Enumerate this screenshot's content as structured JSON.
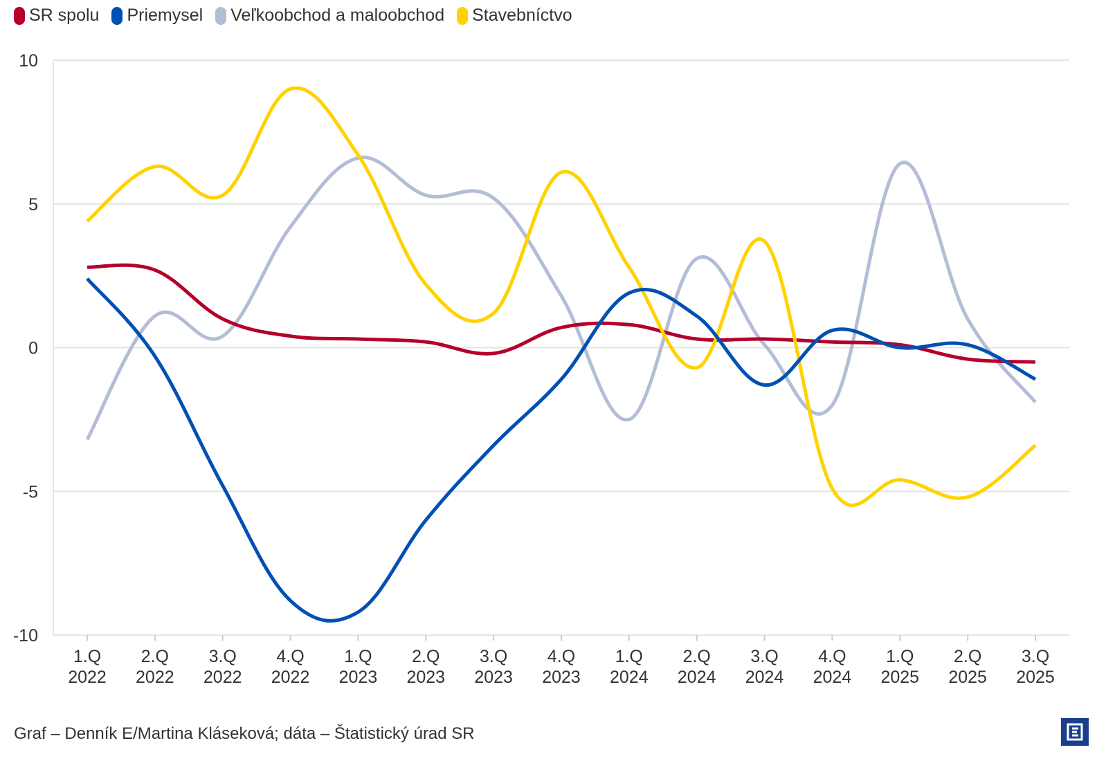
{
  "legend": [
    {
      "name": "SR spolu",
      "color": "#b5002b"
    },
    {
      "name": "Priemysel",
      "color": "#0050b4"
    },
    {
      "name": "Veľkoobchod a maloobchod",
      "color": "#b3bdd6"
    },
    {
      "name": "Stavebníctvo",
      "color": "#ffd200"
    }
  ],
  "chart_data": {
    "type": "line",
    "categories": [
      [
        "1.Q",
        "2022"
      ],
      [
        "2.Q",
        "2022"
      ],
      [
        "3.Q",
        "2022"
      ],
      [
        "4.Q",
        "2022"
      ],
      [
        "1.Q",
        "2023"
      ],
      [
        "2.Q",
        "2023"
      ],
      [
        "3.Q",
        "2023"
      ],
      [
        "4.Q",
        "2023"
      ],
      [
        "1.Q",
        "2024"
      ],
      [
        "2.Q",
        "2024"
      ],
      [
        "3.Q",
        "2024"
      ],
      [
        "4.Q",
        "2024"
      ],
      [
        "1.Q",
        "2025"
      ],
      [
        "2.Q",
        "2025"
      ],
      [
        "3.Q",
        "2025"
      ]
    ],
    "ylim": [
      -10,
      10
    ],
    "yticks": [
      10,
      5,
      0,
      -5,
      -10
    ],
    "ytick_labels": [
      "10",
      "5",
      "0",
      "-5",
      "-10"
    ],
    "series": [
      {
        "name": "SR spolu",
        "color": "#b5002b",
        "values": [
          2.8,
          2.7,
          1.0,
          0.4,
          0.3,
          0.2,
          -0.2,
          0.7,
          0.8,
          0.3,
          0.3,
          0.2,
          0.1,
          -0.4,
          -0.5
        ]
      },
      {
        "name": "Priemysel",
        "color": "#0050b4",
        "values": [
          2.4,
          -0.3,
          -4.8,
          -8.8,
          -9.2,
          -6.0,
          -3.4,
          -1.1,
          1.9,
          1.1,
          -1.3,
          0.6,
          0.0,
          0.1,
          -1.1
        ]
      },
      {
        "name": "Veľkoobchod a maloobchod",
        "color": "#b3bdd6",
        "values": [
          -3.2,
          1.1,
          0.4,
          4.2,
          6.6,
          5.3,
          5.2,
          1.8,
          -2.5,
          3.1,
          0.1,
          -2.0,
          6.4,
          1.0,
          -1.9
        ]
      },
      {
        "name": "Stavebníctvo",
        "color": "#ffd200",
        "values": [
          4.4,
          6.3,
          5.3,
          9.0,
          6.7,
          2.2,
          1.2,
          6.1,
          2.8,
          -0.7,
          3.7,
          -4.9,
          -4.6,
          -5.2,
          -3.4
        ]
      }
    ]
  },
  "footer": {
    "source": "Graf – Denník E/Martina Kláseková; dáta – Štatistický úrad SR"
  },
  "logo": {
    "icon": "denník-e-logo-icon"
  }
}
